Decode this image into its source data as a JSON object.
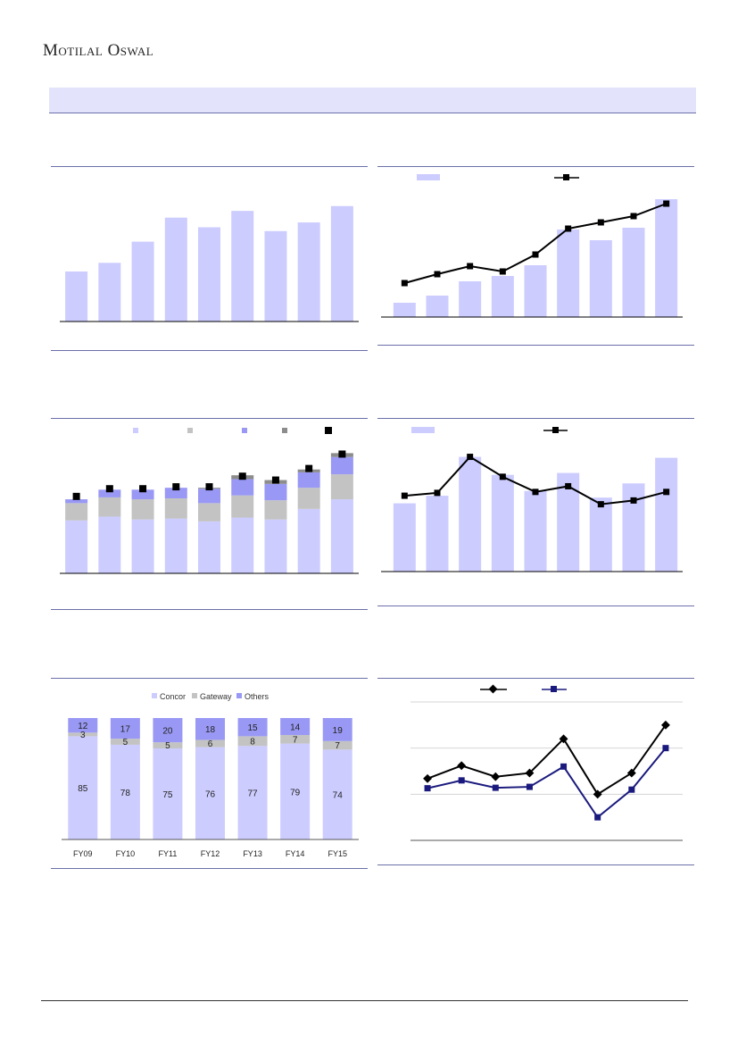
{
  "brand": "Motilal Oswal",
  "colors": {
    "bar": "#ccccff",
    "bar_gray": "#c3c3c3",
    "bar_purple": "#9999f5",
    "bar_dark": "#8c8c8c",
    "line": "#000000",
    "navy": "#1a1a7e",
    "rule": "#6b6fa8"
  },
  "charts": [
    {
      "id": "c1",
      "type": "bar",
      "values": [
        52,
        61,
        83,
        108,
        98,
        115,
        94,
        103,
        120
      ]
    },
    {
      "id": "c2",
      "type": "bar+line",
      "bars": [
        16,
        24,
        40,
        46,
        58,
        98,
        86,
        100,
        132
      ],
      "line": [
        38,
        48,
        57,
        51,
        70,
        99,
        106,
        113,
        127
      ]
    },
    {
      "id": "c3",
      "type": "stacked-bar+marker",
      "series": [
        [
          55,
          59,
          56,
          57,
          54,
          58,
          56,
          67,
          77
        ],
        [
          18,
          20,
          21,
          21,
          19,
          23,
          20,
          22,
          26
        ],
        [
          4,
          8,
          10,
          11,
          15,
          17,
          17,
          16,
          18
        ],
        [
          0,
          0,
          0,
          0,
          1,
          4,
          4,
          3,
          4
        ]
      ],
      "marker": [
        80,
        88,
        88,
        90,
        90,
        101,
        97,
        109,
        124
      ]
    },
    {
      "id": "c4",
      "type": "bar+line",
      "bars": [
        72,
        80,
        121,
        102,
        85,
        104,
        78,
        93,
        120
      ],
      "line": [
        80,
        83,
        121,
        100,
        84,
        90,
        71,
        75,
        84
      ]
    },
    {
      "id": "c5",
      "type": "stacked-100",
      "legend": [
        "Concor",
        "Gateway",
        "Others"
      ],
      "categories": [
        "FY09",
        "FY10",
        "FY11",
        "FY12",
        "FY13",
        "FY14",
        "FY15"
      ],
      "concor": [
        85,
        78,
        75,
        76,
        77,
        79,
        74
      ],
      "gateway": [
        3,
        5,
        5,
        6,
        8,
        7,
        7
      ],
      "others": [
        12,
        17,
        20,
        18,
        15,
        14,
        19
      ]
    },
    {
      "id": "c6",
      "type": "line",
      "ylim": [
        0,
        3
      ],
      "series": [
        {
          "values": [
            1.34,
            1.62,
            1.38,
            1.46,
            2.2,
            1.0,
            1.46,
            2.5
          ]
        },
        {
          "values": [
            1.13,
            1.3,
            1.14,
            1.16,
            1.6,
            0.5,
            1.1,
            2.0
          ]
        }
      ]
    }
  ]
}
